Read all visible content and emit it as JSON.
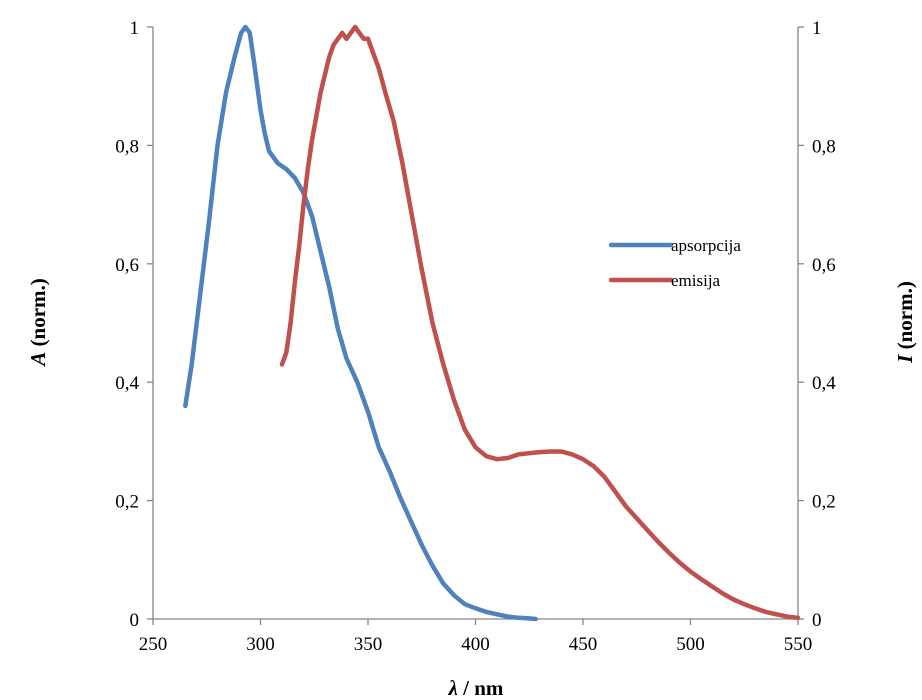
{
  "chart_data": {
    "type": "line",
    "xlabel": {
      "symbol": "λ",
      "rest": " / nm"
    },
    "ylabel_left": {
      "symbol": "A",
      "rest": " (norm.)"
    },
    "ylabel_right": {
      "symbol": "I",
      "rest": " (norm.)"
    },
    "xlim": [
      250,
      550
    ],
    "ylim": [
      0,
      1
    ],
    "x_ticks": [
      250,
      300,
      350,
      400,
      450,
      500,
      550
    ],
    "y_ticks": [
      0,
      0.2,
      0.4,
      0.6,
      0.8,
      1
    ],
    "y_tick_labels": [
      "0",
      "0,2",
      "0,4",
      "0,6",
      "0,8",
      "1"
    ],
    "grid": false,
    "legend_position": "right-center",
    "series": [
      {
        "name": "apsorpcija",
        "color": "#4f81bd",
        "axis": "left",
        "x": [
          265,
          268,
          272,
          276,
          280,
          284,
          288,
          291,
          293,
          295,
          297,
          300,
          302,
          304,
          308,
          312,
          316,
          320,
          324,
          328,
          332,
          336,
          340,
          345,
          350,
          355,
          360,
          365,
          370,
          375,
          380,
          385,
          390,
          395,
          400,
          405,
          410,
          415,
          420,
          425,
          428
        ],
        "y": [
          0.36,
          0.43,
          0.55,
          0.67,
          0.8,
          0.89,
          0.95,
          0.99,
          1.0,
          0.99,
          0.94,
          0.86,
          0.82,
          0.79,
          0.77,
          0.76,
          0.745,
          0.72,
          0.68,
          0.62,
          0.56,
          0.49,
          0.44,
          0.4,
          0.35,
          0.29,
          0.25,
          0.205,
          0.165,
          0.125,
          0.09,
          0.06,
          0.04,
          0.025,
          0.018,
          0.012,
          0.008,
          0.004,
          0.002,
          0.001,
          0.0
        ]
      },
      {
        "name": "emisija",
        "color": "#c0504d",
        "axis": "right",
        "x": [
          310,
          312,
          314,
          316,
          318,
          320,
          322,
          324,
          326,
          328,
          330,
          332,
          334,
          336,
          338,
          340,
          342,
          344,
          346,
          348,
          350,
          352,
          355,
          358,
          362,
          366,
          370,
          375,
          380,
          385,
          390,
          395,
          400,
          405,
          410,
          415,
          420,
          425,
          430,
          435,
          440,
          445,
          450,
          455,
          460,
          465,
          470,
          475,
          480,
          485,
          490,
          495,
          500,
          505,
          510,
          515,
          520,
          525,
          530,
          535,
          540,
          545,
          550
        ],
        "y": [
          0.43,
          0.45,
          0.5,
          0.57,
          0.63,
          0.7,
          0.76,
          0.81,
          0.85,
          0.89,
          0.92,
          0.95,
          0.97,
          0.98,
          0.99,
          0.98,
          0.99,
          1.0,
          0.99,
          0.98,
          0.98,
          0.96,
          0.93,
          0.89,
          0.84,
          0.77,
          0.69,
          0.59,
          0.5,
          0.43,
          0.37,
          0.32,
          0.29,
          0.275,
          0.27,
          0.272,
          0.278,
          0.28,
          0.282,
          0.283,
          0.283,
          0.278,
          0.27,
          0.258,
          0.24,
          0.215,
          0.19,
          0.17,
          0.15,
          0.13,
          0.112,
          0.095,
          0.08,
          0.067,
          0.055,
          0.043,
          0.033,
          0.025,
          0.018,
          0.012,
          0.008,
          0.004,
          0.002
        ]
      }
    ]
  }
}
